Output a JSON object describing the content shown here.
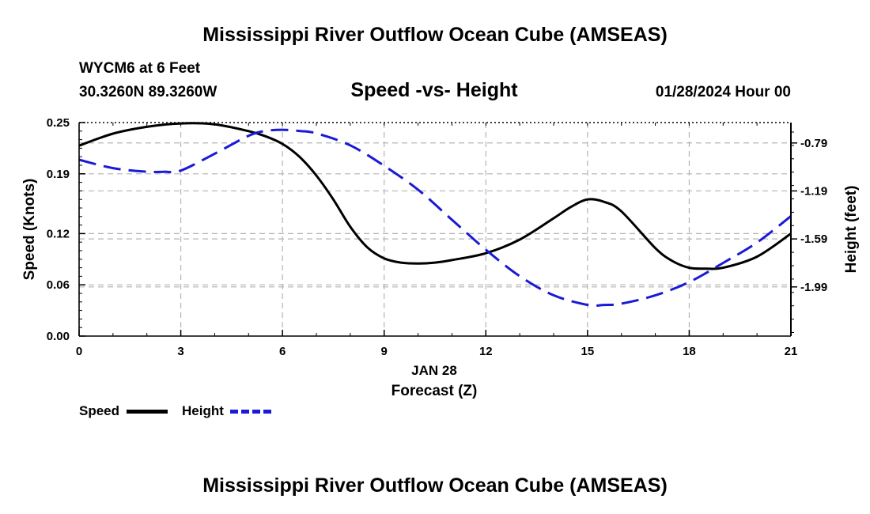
{
  "page": {
    "title_top": "Mississippi River Outflow Ocean Cube (AMSEAS)",
    "title_bottom": "Mississippi River Outflow Ocean Cube (AMSEAS)",
    "station": "WYCM6 at 6 Feet",
    "coords": "30.3260N  89.3260W",
    "datetime": "01/28/2024 Hour 00"
  },
  "colors": {
    "speed": "#000000",
    "height": "#1a1ad6",
    "grid": "#b4b4b4"
  },
  "chart_data": {
    "type": "line",
    "title": "Speed -vs- Height",
    "xlabel": "Forecast (Z)",
    "xdate": "JAN 28",
    "ylabel": "Speed (Knots)",
    "y2label": "Height (feet)",
    "xlim": [
      0,
      21
    ],
    "ylim": [
      0,
      0.25
    ],
    "y2lim": [
      -2.4,
      -0.62
    ],
    "x_ticks": [
      "0",
      "3",
      "6",
      "9",
      "12",
      "15",
      "18",
      "21"
    ],
    "y_ticks": [
      "0.00",
      "0.06",
      "0.12",
      "0.19",
      "0.25"
    ],
    "y2_ticks": [
      "-0.79",
      "-1.19",
      "-1.59",
      "-1.99"
    ],
    "grid": true,
    "series": [
      {
        "name": "Speed",
        "axis": "left",
        "style": "solid",
        "x": [
          0,
          1,
          2,
          3,
          4,
          5,
          5.5,
          6,
          6.5,
          7,
          7.5,
          8,
          8.5,
          9,
          9.5,
          10,
          10.5,
          11,
          12,
          13,
          14,
          14.5,
          15,
          15.5,
          16,
          17,
          17.5,
          18,
          18.5,
          19,
          20,
          21
        ],
        "values": [
          0.223,
          0.237,
          0.245,
          0.249,
          0.248,
          0.24,
          0.234,
          0.225,
          0.21,
          0.188,
          0.16,
          0.128,
          0.104,
          0.091,
          0.086,
          0.085,
          0.086,
          0.089,
          0.097,
          0.113,
          0.138,
          0.151,
          0.16,
          0.157,
          0.146,
          0.103,
          0.088,
          0.08,
          0.079,
          0.08,
          0.093,
          0.12
        ]
      },
      {
        "name": "Height",
        "axis": "right",
        "style": "dashed",
        "x": [
          0,
          1,
          2,
          2.5,
          3,
          4,
          5,
          5.5,
          6,
          6.5,
          7,
          8,
          9,
          10,
          11,
          12,
          13,
          14,
          15,
          15.5,
          16,
          17,
          18,
          19,
          20,
          21
        ],
        "values": [
          -0.93,
          -1.0,
          -1.03,
          -1.03,
          -1.02,
          -0.88,
          -0.73,
          -0.69,
          -0.68,
          -0.69,
          -0.71,
          -0.81,
          -0.98,
          -1.18,
          -1.43,
          -1.68,
          -1.9,
          -2.06,
          -2.14,
          -2.14,
          -2.13,
          -2.06,
          -1.95,
          -1.79,
          -1.62,
          -1.4
        ]
      }
    ],
    "legend": [
      {
        "label": "Speed",
        "style": "solid"
      },
      {
        "label": "Height",
        "style": "dashed"
      }
    ]
  }
}
